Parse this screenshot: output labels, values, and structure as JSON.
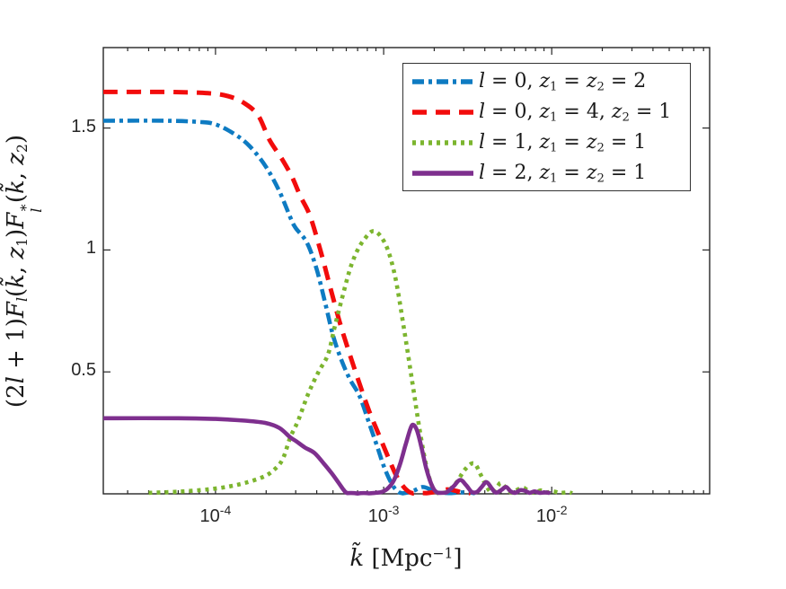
{
  "colors": {
    "blue": "#0E7BC2",
    "red": "#F20C0C",
    "green": "#7CB52F",
    "purple": "#7E2F8E",
    "axis": "#262626",
    "text": "#1a1a1a",
    "background": "#ffffff"
  },
  "axes": {
    "x_major_ticks": [
      {
        "k": 0.0001,
        "base": "10",
        "exp": "-4"
      },
      {
        "k": 0.001,
        "base": "10",
        "exp": "-3"
      },
      {
        "k": 0.01,
        "base": "10",
        "exp": "-2"
      }
    ],
    "y_ticks": [
      {
        "v": 0.5,
        "label": "0.5"
      },
      {
        "v": 1.0,
        "label": "1"
      },
      {
        "v": 1.5,
        "label": "1.5"
      }
    ],
    "xlabel_segments": [
      {
        "t": "k̃",
        "i": 1
      },
      {
        "t": " [Mpc"
      },
      {
        "t": "−1",
        "sup": 1
      },
      {
        "t": "]"
      }
    ],
    "ylabel_segments": [
      {
        "t": "(2"
      },
      {
        "t": "l",
        "i": 1
      },
      {
        "t": " + 1)"
      },
      {
        "t": "F",
        "i": 1
      },
      {
        "t": "l",
        "i": 1,
        "sub": 1
      },
      {
        "t": "("
      },
      {
        "t": "k̃",
        "i": 1
      },
      {
        "t": ", "
      },
      {
        "t": "z",
        "i": 1
      },
      {
        "t": "1",
        "sub": 1
      },
      {
        "t": ")"
      },
      {
        "t": "F",
        "i": 1
      },
      {
        "stack": {
          "sup": "∗",
          "sub": "l"
        }
      },
      {
        "t": "("
      },
      {
        "t": "k̃",
        "i": 1
      },
      {
        "t": ", "
      },
      {
        "t": "z",
        "i": 1
      },
      {
        "t": "2",
        "sub": 1
      },
      {
        "t": ")"
      }
    ]
  },
  "legend": {
    "position": "northeast",
    "items": [
      {
        "series": "l0_z2_2",
        "color": "#0E7BC2",
        "style": "dashdot",
        "segments": [
          {
            "t": "l",
            "i": 1
          },
          {
            "t": " = 0, "
          },
          {
            "t": "z",
            "i": 1
          },
          {
            "t": "1",
            "sub": 1
          },
          {
            "t": " = "
          },
          {
            "t": "z",
            "i": 1
          },
          {
            "t": "2",
            "sub": 1
          },
          {
            "t": " = 2"
          }
        ]
      },
      {
        "series": "l0_z4_z1",
        "color": "#F20C0C",
        "style": "dashed",
        "segments": [
          {
            "t": "l",
            "i": 1
          },
          {
            "t": " = 0, "
          },
          {
            "t": "z",
            "i": 1
          },
          {
            "t": "1",
            "sub": 1
          },
          {
            "t": " = 4, "
          },
          {
            "t": "z",
            "i": 1
          },
          {
            "t": "2",
            "sub": 1
          },
          {
            "t": " = 1"
          }
        ]
      },
      {
        "series": "l1_z1_1",
        "color": "#7CB52F",
        "style": "dotted",
        "segments": [
          {
            "t": "l",
            "i": 1
          },
          {
            "t": " = 1, "
          },
          {
            "t": "z",
            "i": 1
          },
          {
            "t": "1",
            "sub": 1
          },
          {
            "t": " = "
          },
          {
            "t": "z",
            "i": 1
          },
          {
            "t": "2",
            "sub": 1
          },
          {
            "t": " = 1"
          }
        ]
      },
      {
        "series": "l2_z1_1",
        "color": "#7E2F8E",
        "style": "solid",
        "segments": [
          {
            "t": "l",
            "i": 1
          },
          {
            "t": " = 2, "
          },
          {
            "t": "z",
            "i": 1
          },
          {
            "t": "1",
            "sub": 1
          },
          {
            "t": " = "
          },
          {
            "t": "z",
            "i": 1
          },
          {
            "t": "2",
            "sub": 1
          },
          {
            "t": " = 1"
          }
        ]
      }
    ]
  },
  "chart_data": {
    "type": "line",
    "xscale": "log",
    "yscale": "linear",
    "xlim": [
      2.15e-05,
      0.087
    ],
    "ylim": [
      0,
      1.83
    ],
    "grid": false,
    "xlabel_plain": "k~ [Mpc^-1]",
    "ylabel_plain": "(2l+1) F_l(k~,z1) F_l*(k~,z2)",
    "legend_position": "northeast",
    "series": [
      {
        "name": "l = 0, z1 = z2 = 2",
        "color": "#0E7BC2",
        "style": "dashdot",
        "width": 4.6,
        "points": [
          [
            2.15e-05,
            1.53
          ],
          [
            5e-05,
            1.53
          ],
          [
            8e-05,
            1.525
          ],
          [
            0.0001,
            1.515
          ],
          [
            0.00013,
            1.475
          ],
          [
            0.00016,
            1.425
          ],
          [
            0.0002,
            1.34
          ],
          [
            0.00024,
            1.24
          ],
          [
            0.00028,
            1.13
          ],
          [
            0.0003,
            1.09
          ],
          [
            0.00035,
            1.03
          ],
          [
            0.0004,
            0.92
          ],
          [
            0.00045,
            0.78
          ],
          [
            0.0005,
            0.65
          ],
          [
            0.00056,
            0.55
          ],
          [
            0.00063,
            0.47
          ],
          [
            0.00072,
            0.4
          ],
          [
            0.00082,
            0.29
          ],
          [
            0.00092,
            0.19
          ],
          [
            0.001,
            0.115
          ],
          [
            0.0011,
            0.05
          ],
          [
            0.0012,
            0.012
          ],
          [
            0.0013,
            0.002
          ],
          [
            0.0015,
            0.012
          ],
          [
            0.0017,
            0.028
          ],
          [
            0.0019,
            0.018
          ],
          [
            0.0021,
            0.005
          ],
          [
            0.0025,
            0.003
          ],
          [
            0.003,
            0.006
          ],
          [
            0.0035,
            0.002
          ]
        ]
      },
      {
        "name": "l = 0, z1 = 4, z2 = 1",
        "color": "#F20C0C",
        "style": "dashed",
        "width": 5,
        "points": [
          [
            2.15e-05,
            1.648
          ],
          [
            5e-05,
            1.648
          ],
          [
            9e-05,
            1.643
          ],
          [
            0.00012,
            1.63
          ],
          [
            0.00015,
            1.6
          ],
          [
            0.00018,
            1.55
          ],
          [
            0.00021,
            1.45
          ],
          [
            0.00025,
            1.37
          ],
          [
            0.000285,
            1.3
          ],
          [
            0.00032,
            1.22
          ],
          [
            0.000365,
            1.14
          ],
          [
            0.00042,
            1.0
          ],
          [
            0.00048,
            0.85
          ],
          [
            0.00055,
            0.7
          ],
          [
            0.00063,
            0.57
          ],
          [
            0.00072,
            0.45
          ],
          [
            0.00082,
            0.34
          ],
          [
            0.00094,
            0.24
          ],
          [
            0.00108,
            0.14
          ],
          [
            0.0012,
            0.07
          ],
          [
            0.00135,
            0.02
          ],
          [
            0.0015,
            0.002
          ],
          [
            0.0018,
            0.003
          ],
          [
            0.0021,
            0.01
          ],
          [
            0.0024,
            0.018
          ],
          [
            0.0027,
            0.012
          ],
          [
            0.003,
            0.004
          ],
          [
            0.0033,
            0.002
          ]
        ]
      },
      {
        "name": "l = 1, z1 = z2 = 1",
        "color": "#7CB52F",
        "style": "dotted",
        "width": 4.6,
        "points": [
          [
            4e-05,
            0.004
          ],
          [
            6e-05,
            0.009
          ],
          [
            9e-05,
            0.018
          ],
          [
            0.00012,
            0.03
          ],
          [
            0.00015,
            0.045
          ],
          [
            0.00019,
            0.068
          ],
          [
            0.00022,
            0.095
          ],
          [
            0.00025,
            0.14
          ],
          [
            0.000278,
            0.23
          ],
          [
            0.00031,
            0.3
          ],
          [
            0.000356,
            0.41
          ],
          [
            0.00041,
            0.5
          ],
          [
            0.000466,
            0.57
          ],
          [
            0.00051,
            0.68
          ],
          [
            0.00056,
            0.79
          ],
          [
            0.00063,
            0.92
          ],
          [
            0.0007,
            1.0
          ],
          [
            0.00078,
            1.05
          ],
          [
            0.00086,
            1.077
          ],
          [
            0.00095,
            1.06
          ],
          [
            0.00106,
            1.0
          ],
          [
            0.00118,
            0.88
          ],
          [
            0.00132,
            0.68
          ],
          [
            0.00148,
            0.46
          ],
          [
            0.00164,
            0.26
          ],
          [
            0.0018,
            0.11
          ],
          [
            0.00195,
            0.03
          ],
          [
            0.0021,
            0.003
          ],
          [
            0.00235,
            0.006
          ],
          [
            0.0027,
            0.045
          ],
          [
            0.00305,
            0.1
          ],
          [
            0.00345,
            0.125
          ],
          [
            0.0038,
            0.075
          ],
          [
            0.0041,
            0.03
          ],
          [
            0.0044,
            0.005
          ],
          [
            0.00475,
            0.03
          ],
          [
            0.005,
            0.045
          ],
          [
            0.0054,
            0.02
          ],
          [
            0.0058,
            0.005
          ],
          [
            0.0063,
            0.018
          ],
          [
            0.0068,
            0.025
          ],
          [
            0.0073,
            0.01
          ],
          [
            0.0079,
            0.004
          ],
          [
            0.0086,
            0.014
          ],
          [
            0.0093,
            0.006
          ],
          [
            0.0102,
            0.01
          ],
          [
            0.0112,
            0.004
          ],
          [
            0.0125,
            0.006
          ],
          [
            0.0132,
            0.002
          ]
        ]
      },
      {
        "name": "l = 2, z1 = z2 = 1",
        "color": "#7E2F8E",
        "style": "solid",
        "width": 4.6,
        "points": [
          [
            2.15e-05,
            0.31
          ],
          [
            6e-05,
            0.31
          ],
          [
            0.0001,
            0.307
          ],
          [
            0.00015,
            0.3
          ],
          [
            0.0002,
            0.29
          ],
          [
            0.00024,
            0.27
          ],
          [
            0.000278,
            0.232
          ],
          [
            0.000303,
            0.215
          ],
          [
            0.00034,
            0.19
          ],
          [
            0.000387,
            0.168
          ],
          [
            0.00044,
            0.125
          ],
          [
            0.00049,
            0.085
          ],
          [
            0.00054,
            0.045
          ],
          [
            0.00058,
            0.015
          ],
          [
            0.00061,
            0.003
          ],
          [
            0.0007,
            0.001
          ],
          [
            0.00082,
            0.002
          ],
          [
            0.00095,
            0.006
          ],
          [
            0.00105,
            0.02
          ],
          [
            0.00115,
            0.055
          ],
          [
            0.00125,
            0.12
          ],
          [
            0.00135,
            0.2
          ],
          [
            0.00144,
            0.265
          ],
          [
            0.0015,
            0.283
          ],
          [
            0.00158,
            0.26
          ],
          [
            0.00168,
            0.19
          ],
          [
            0.0018,
            0.1
          ],
          [
            0.00195,
            0.03
          ],
          [
            0.0021,
            0.004
          ],
          [
            0.00235,
            0.005
          ],
          [
            0.0026,
            0.03
          ],
          [
            0.00285,
            0.057
          ],
          [
            0.0031,
            0.035
          ],
          [
            0.00335,
            0.007
          ],
          [
            0.0036,
            0.008
          ],
          [
            0.00385,
            0.03
          ],
          [
            0.0041,
            0.048
          ],
          [
            0.0044,
            0.022
          ],
          [
            0.00465,
            0.005
          ],
          [
            0.005,
            0.015
          ],
          [
            0.00535,
            0.028
          ],
          [
            0.0057,
            0.01
          ],
          [
            0.00605,
            0.004
          ],
          [
            0.0065,
            0.015
          ],
          [
            0.00695,
            0.012
          ],
          [
            0.0074,
            0.004
          ],
          [
            0.0079,
            0.01
          ],
          [
            0.0085,
            0.004
          ],
          [
            0.0092,
            0.006
          ],
          [
            0.0098,
            0.002
          ]
        ]
      }
    ]
  }
}
